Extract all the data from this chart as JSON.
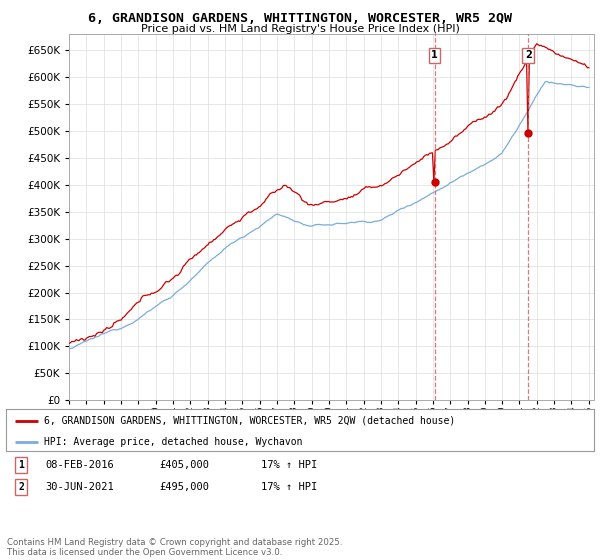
{
  "title": "6, GRANDISON GARDENS, WHITTINGTON, WORCESTER, WR5 2QW",
  "subtitle": "Price paid vs. HM Land Registry's House Price Index (HPI)",
  "legend_label_red": "6, GRANDISON GARDENS, WHITTINGTON, WORCESTER, WR5 2QW (detached house)",
  "legend_label_blue": "HPI: Average price, detached house, Wychavon",
  "footnote": "Contains HM Land Registry data © Crown copyright and database right 2025.\nThis data is licensed under the Open Government Licence v3.0.",
  "transaction1_label": "1",
  "transaction1_date": "08-FEB-2016",
  "transaction1_price": "£405,000",
  "transaction1_hpi": "17% ↑ HPI",
  "transaction2_label": "2",
  "transaction2_date": "30-JUN-2021",
  "transaction2_price": "£495,000",
  "transaction2_hpi": "17% ↑ HPI",
  "red_color": "#cc0000",
  "blue_color": "#7aaddc",
  "dashed_line_color": "#cc6666",
  "background_color": "#ffffff",
  "grid_color": "#dddddd",
  "ylim": [
    0,
    680000
  ],
  "yticks": [
    0,
    50000,
    100000,
    150000,
    200000,
    250000,
    300000,
    350000,
    400000,
    450000,
    500000,
    550000,
    600000,
    650000
  ],
  "year_start": 1995,
  "year_end": 2025,
  "transaction1_year": 2016.1,
  "transaction2_year": 2021.5,
  "price1": 405000,
  "price2": 495000
}
